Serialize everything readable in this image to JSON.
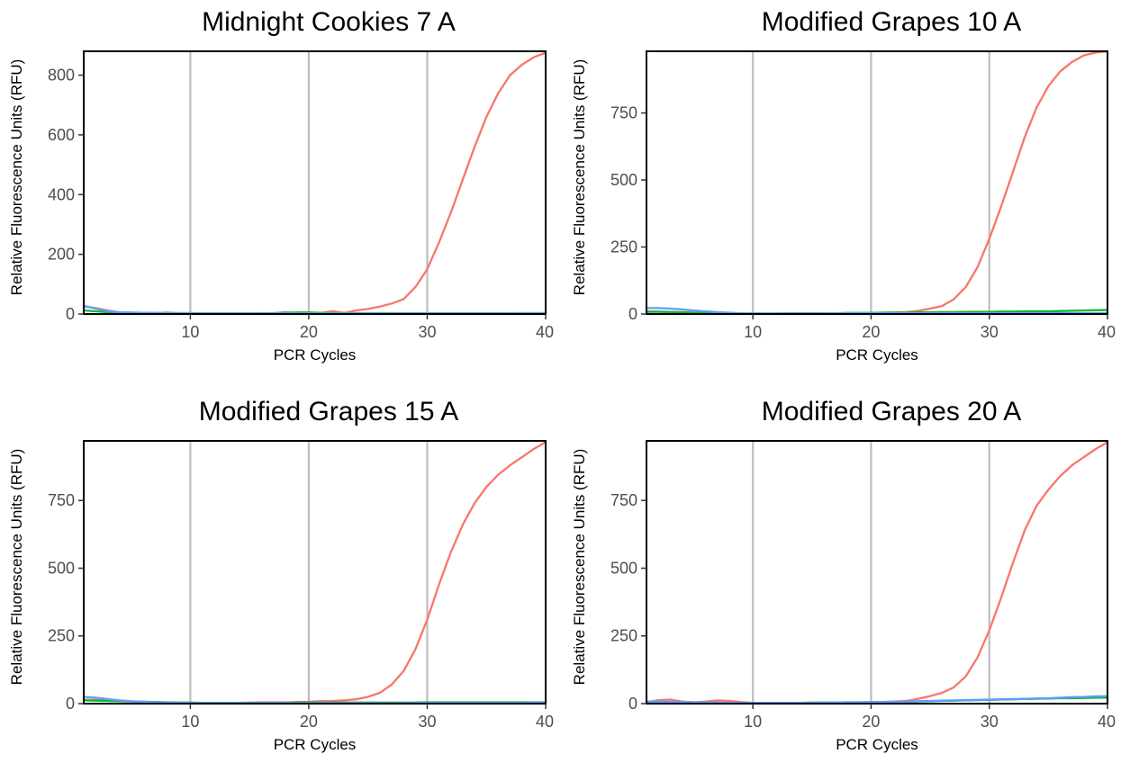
{
  "colors": {
    "red_series": "#F8766D",
    "green_series": "#00BA38",
    "blue_series": "#619CFF",
    "gridline": "#BEBEBE",
    "frame": "#000000"
  },
  "chart_data": [
    {
      "type": "line",
      "title": "Midnight Cookies 7 A",
      "xlabel": "PCR Cycles",
      "ylabel": "Relative Fluorescence Units (RFU)",
      "xlim": [
        1,
        40
      ],
      "ylim": [
        0,
        880
      ],
      "xticks": [
        10,
        20,
        30,
        40
      ],
      "yticks": [
        0,
        200,
        400,
        600,
        800
      ],
      "grid": "vertical major gridlines at x ticks",
      "legend": "none",
      "x": [
        1,
        2,
        3,
        4,
        5,
        6,
        7,
        8,
        9,
        10,
        11,
        12,
        13,
        14,
        15,
        16,
        17,
        18,
        19,
        20,
        21,
        22,
        23,
        24,
        25,
        26,
        27,
        28,
        29,
        30,
        31,
        32,
        33,
        34,
        35,
        36,
        37,
        38,
        39,
        40
      ],
      "series": [
        {
          "color": "#F8766D",
          "values": [
            25,
            20,
            12,
            6,
            4,
            3,
            2,
            5,
            2,
            1,
            1,
            2,
            1,
            1,
            1,
            3,
            2,
            6,
            3,
            5,
            3,
            10,
            4,
            12,
            17,
            25,
            35,
            50,
            90,
            150,
            240,
            340,
            450,
            560,
            660,
            740,
            800,
            835,
            860,
            875
          ]
        },
        {
          "color": "#00BA38",
          "values": [
            12,
            9,
            6,
            5,
            4,
            4,
            3,
            3,
            3,
            3,
            2,
            2,
            2,
            2,
            2,
            2,
            3,
            4,
            5,
            5,
            4,
            3,
            3,
            3,
            3,
            3,
            3,
            3,
            3,
            3,
            3,
            3,
            3,
            3,
            3,
            3,
            3,
            3,
            3,
            3
          ]
        },
        {
          "color": "#619CFF",
          "values": [
            28,
            18,
            10,
            6,
            5,
            4,
            4,
            3,
            3,
            3,
            2,
            2,
            2,
            2,
            2,
            2,
            2,
            2,
            2,
            2,
            2,
            2,
            2,
            2,
            2,
            2,
            2,
            2,
            2,
            2,
            2,
            2,
            2,
            2,
            2,
            2,
            2,
            3,
            3,
            3
          ]
        }
      ]
    },
    {
      "type": "line",
      "title": "Modified Grapes 10 A",
      "xlabel": "PCR Cycles",
      "ylabel": "Relative Fluorescence Units (RFU)",
      "xlim": [
        1,
        40
      ],
      "ylim": [
        0,
        980
      ],
      "xticks": [
        10,
        20,
        30,
        40
      ],
      "yticks": [
        0,
        250,
        500,
        750
      ],
      "grid": "vertical major gridlines at x ticks",
      "legend": "none",
      "x": [
        1,
        2,
        3,
        4,
        5,
        6,
        7,
        8,
        9,
        10,
        11,
        12,
        13,
        14,
        15,
        16,
        17,
        18,
        19,
        20,
        21,
        22,
        23,
        24,
        25,
        26,
        27,
        28,
        29,
        30,
        31,
        32,
        33,
        34,
        35,
        36,
        37,
        38,
        39,
        40
      ],
      "series": [
        {
          "color": "#F8766D",
          "values": [
            10,
            9,
            8,
            7,
            5,
            4,
            3,
            2,
            1,
            1,
            1,
            1,
            1,
            1,
            2,
            2,
            2,
            3,
            3,
            4,
            5,
            6,
            7,
            12,
            20,
            30,
            55,
            100,
            175,
            280,
            400,
            530,
            660,
            770,
            850,
            905,
            940,
            965,
            975,
            980
          ]
        },
        {
          "color": "#00BA38",
          "values": [
            8,
            8,
            7,
            6,
            5,
            4,
            3,
            3,
            2,
            2,
            2,
            2,
            3,
            3,
            3,
            3,
            3,
            4,
            4,
            4,
            5,
            5,
            5,
            6,
            6,
            7,
            7,
            8,
            8,
            8,
            9,
            9,
            10,
            10,
            10,
            11,
            12,
            13,
            14,
            15
          ]
        },
        {
          "color": "#619CFF",
          "values": [
            22,
            22,
            20,
            17,
            13,
            10,
            7,
            5,
            3,
            2,
            2,
            2,
            2,
            2,
            2,
            3,
            3,
            3,
            3,
            3,
            3,
            3,
            3,
            3,
            3,
            3,
            3,
            3,
            3,
            3,
            3,
            3,
            3,
            3,
            3,
            3,
            3,
            3,
            3,
            3
          ]
        }
      ]
    },
    {
      "type": "line",
      "title": "Modified Grapes 15 A",
      "xlabel": "PCR Cycles",
      "ylabel": "Relative Fluorescence Units (RFU)",
      "xlim": [
        1,
        40
      ],
      "ylim": [
        0,
        970
      ],
      "xticks": [
        10,
        20,
        30,
        40
      ],
      "yticks": [
        0,
        250,
        500,
        750
      ],
      "grid": "vertical major gridlines at x ticks",
      "legend": "none",
      "x": [
        1,
        2,
        3,
        4,
        5,
        6,
        7,
        8,
        9,
        10,
        11,
        12,
        13,
        14,
        15,
        16,
        17,
        18,
        19,
        20,
        21,
        22,
        23,
        24,
        25,
        26,
        27,
        28,
        29,
        30,
        31,
        32,
        33,
        34,
        35,
        36,
        37,
        38,
        39,
        40
      ],
      "series": [
        {
          "color": "#F8766D",
          "values": [
            15,
            14,
            12,
            10,
            8,
            6,
            4,
            3,
            2,
            2,
            1,
            1,
            2,
            3,
            4,
            5,
            5,
            5,
            6,
            7,
            9,
            10,
            12,
            16,
            25,
            40,
            70,
            120,
            200,
            310,
            440,
            560,
            660,
            740,
            800,
            845,
            880,
            910,
            940,
            965
          ]
        },
        {
          "color": "#00BA38",
          "values": [
            12,
            11,
            10,
            9,
            8,
            7,
            6,
            5,
            4,
            4,
            3,
            3,
            3,
            3,
            3,
            3,
            3,
            3,
            4,
            4,
            4,
            4,
            4,
            4,
            4,
            4,
            4,
            4,
            4,
            5,
            5,
            5,
            5,
            5,
            5,
            5,
            5,
            5,
            5,
            5
          ]
        },
        {
          "color": "#619CFF",
          "values": [
            25,
            22,
            17,
            12,
            9,
            7,
            5,
            4,
            3,
            3,
            2,
            2,
            2,
            2,
            2,
            2,
            2,
            2,
            2,
            2,
            2,
            2,
            2,
            2,
            2,
            2,
            2,
            2,
            2,
            3,
            3,
            3,
            3,
            3,
            3,
            3,
            3,
            3,
            4,
            4
          ]
        }
      ]
    },
    {
      "type": "line",
      "title": "Modified Grapes 20 A",
      "xlabel": "PCR Cycles",
      "ylabel": "Relative Fluorescence Units (RFU)",
      "xlim": [
        1,
        40
      ],
      "ylim": [
        0,
        970
      ],
      "xticks": [
        10,
        20,
        30,
        40
      ],
      "yticks": [
        0,
        250,
        500,
        750
      ],
      "grid": "vertical major gridlines at x ticks",
      "legend": "none",
      "x": [
        1,
        2,
        3,
        4,
        5,
        6,
        7,
        8,
        9,
        10,
        11,
        12,
        13,
        14,
        15,
        16,
        17,
        18,
        19,
        20,
        21,
        22,
        23,
        24,
        25,
        26,
        27,
        28,
        29,
        30,
        31,
        32,
        33,
        34,
        35,
        36,
        37,
        38,
        39,
        40
      ],
      "series": [
        {
          "color": "#F8766D",
          "values": [
            5,
            13,
            15,
            8,
            5,
            8,
            12,
            10,
            6,
            3,
            2,
            3,
            3,
            3,
            3,
            3,
            3,
            3,
            4,
            5,
            6,
            8,
            10,
            18,
            28,
            40,
            60,
            100,
            170,
            270,
            390,
            520,
            640,
            730,
            790,
            840,
            880,
            910,
            940,
            965
          ]
        },
        {
          "color": "#00BA38",
          "values": [
            4,
            4,
            4,
            4,
            4,
            4,
            4,
            3,
            3,
            3,
            3,
            3,
            3,
            3,
            4,
            4,
            4,
            5,
            5,
            5,
            6,
            6,
            7,
            8,
            9,
            10,
            11,
            12,
            13,
            14,
            15,
            16,
            17,
            18,
            19,
            20,
            20,
            21,
            22,
            22
          ]
        },
        {
          "color": "#619CFF",
          "values": [
            8,
            8,
            7,
            6,
            5,
            4,
            4,
            3,
            3,
            3,
            3,
            3,
            3,
            3,
            3,
            4,
            4,
            5,
            5,
            6,
            6,
            7,
            8,
            9,
            10,
            11,
            12,
            13,
            14,
            15,
            16,
            17,
            18,
            19,
            20,
            22,
            24,
            25,
            27,
            28
          ]
        }
      ]
    }
  ]
}
